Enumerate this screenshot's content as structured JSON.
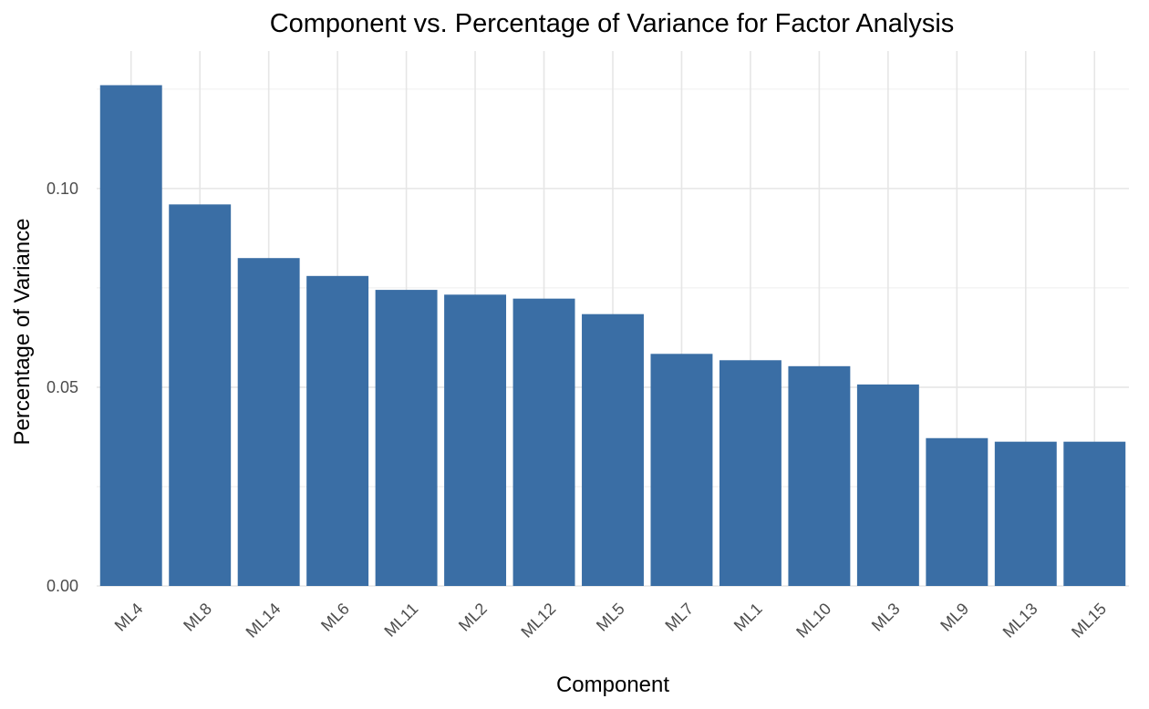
{
  "chart_data": {
    "type": "bar",
    "title": "Component vs. Percentage of Variance for Factor Analysis",
    "xlabel": "Component",
    "ylabel": "Percentage of Variance",
    "categories": [
      "ML4",
      "ML8",
      "ML14",
      "ML6",
      "ML11",
      "ML2",
      "ML12",
      "ML5",
      "ML7",
      "ML1",
      "ML10",
      "ML3",
      "ML9",
      "ML13",
      "ML15"
    ],
    "values": [
      0.126,
      0.096,
      0.0825,
      0.078,
      0.0745,
      0.0733,
      0.0723,
      0.0684,
      0.0584,
      0.0568,
      0.0553,
      0.0507,
      0.0372,
      0.0363,
      0.0363
    ],
    "y_ticks": [
      0,
      0.05,
      0.1
    ],
    "y_tick_labels": [
      "0.00",
      "0.05",
      "0.10"
    ],
    "ylim": [
      0,
      0.1323
    ],
    "grid": true,
    "legend": "none",
    "bar_color": "#3A6EA5"
  }
}
